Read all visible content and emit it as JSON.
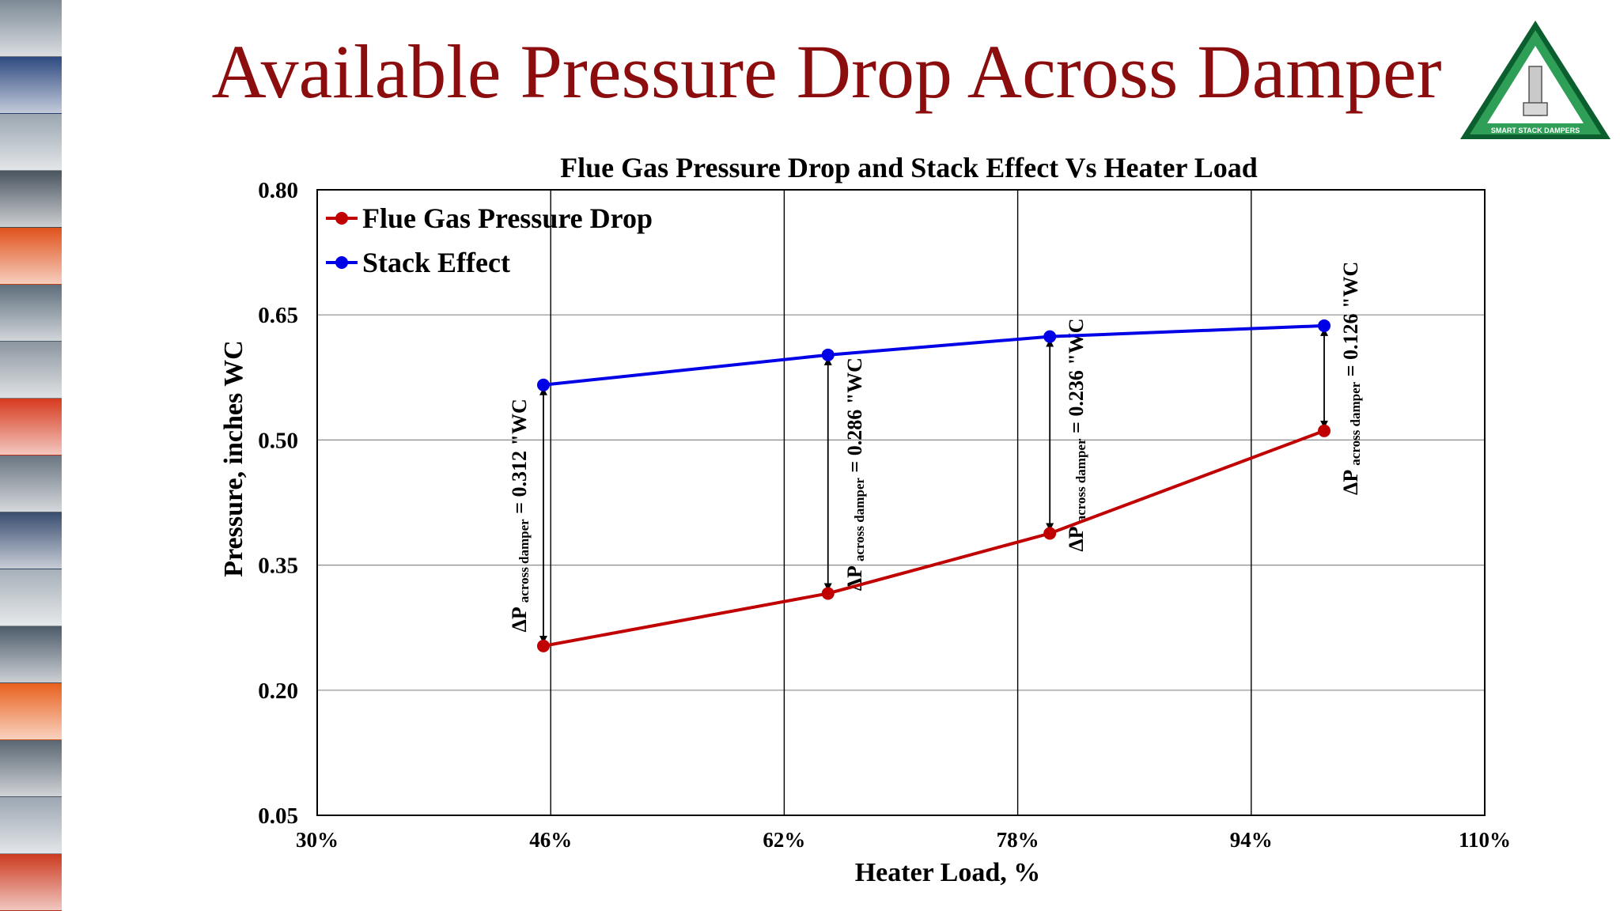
{
  "slide": {
    "title": "Available Pressure Drop Across Damper"
  },
  "logo": {
    "text": "SMART STACK DAMPERS",
    "colors": {
      "border": "#0b5e2e",
      "fill": "#2f9e57",
      "inner": "#ffffff"
    }
  },
  "sidebar": {
    "tile_colors": [
      "#7d8a96",
      "#2e4a80",
      "#9aa6b0",
      "#4a5560",
      "#e0521c",
      "#5e6e7c",
      "#8c96a0",
      "#d63a1e",
      "#6a7682",
      "#3a4e70",
      "#a6b0b8",
      "#4d5b6a",
      "#e8601e",
      "#5a6672",
      "#9ca6b2",
      "#cc3a20"
    ]
  },
  "chart_data": {
    "type": "line",
    "title": "Flue Gas Pressure Drop and Stack Effect Vs Heater Load",
    "xlabel": "Heater Load, %",
    "ylabel": "Pressure, inches WC",
    "xlim": [
      30,
      110
    ],
    "ylim": [
      0.05,
      0.8
    ],
    "x_ticks": [
      30,
      46,
      62,
      78,
      94,
      110
    ],
    "x_tick_labels": [
      "30%",
      "46%",
      "62%",
      "78%",
      "94%",
      "110%"
    ],
    "y_ticks": [
      0.05,
      0.2,
      0.35,
      0.5,
      0.65,
      0.8
    ],
    "y_tick_labels": [
      "0.05",
      "0.20",
      "0.35",
      "0.50",
      "0.65",
      "0.80"
    ],
    "grid": true,
    "legend_position": "top-left",
    "series": [
      {
        "name": "Flue Gas Pressure Drop",
        "color": "#c00000",
        "x": [
          45.5,
          65,
          80.2,
          99
        ],
        "y": [
          0.253,
          0.316,
          0.388,
          0.511
        ]
      },
      {
        "name": "Stack Effect",
        "color": "#0000e6",
        "x": [
          45.5,
          65,
          80.2,
          99
        ],
        "y": [
          0.566,
          0.602,
          0.624,
          0.637
        ]
      }
    ],
    "annotations": [
      {
        "x": 45.5,
        "y_top": 0.566,
        "y_bottom": 0.253,
        "prefix": "ΔP",
        "subscript": "across damper",
        "value": "= 0.312 \"WC"
      },
      {
        "x": 65,
        "y_top": 0.602,
        "y_bottom": 0.316,
        "prefix": "ΔP",
        "subscript": "across damper",
        "value": "= 0.286 \"WC"
      },
      {
        "x": 80.2,
        "y_top": 0.624,
        "y_bottom": 0.388,
        "prefix": "ΔP",
        "subscript": "across damper",
        "value": "= 0.236 \"WC"
      },
      {
        "x": 99,
        "y_top": 0.637,
        "y_bottom": 0.511,
        "prefix": "ΔP",
        "subscript": "across damper",
        "value": "= 0.126 \"WC"
      }
    ]
  }
}
